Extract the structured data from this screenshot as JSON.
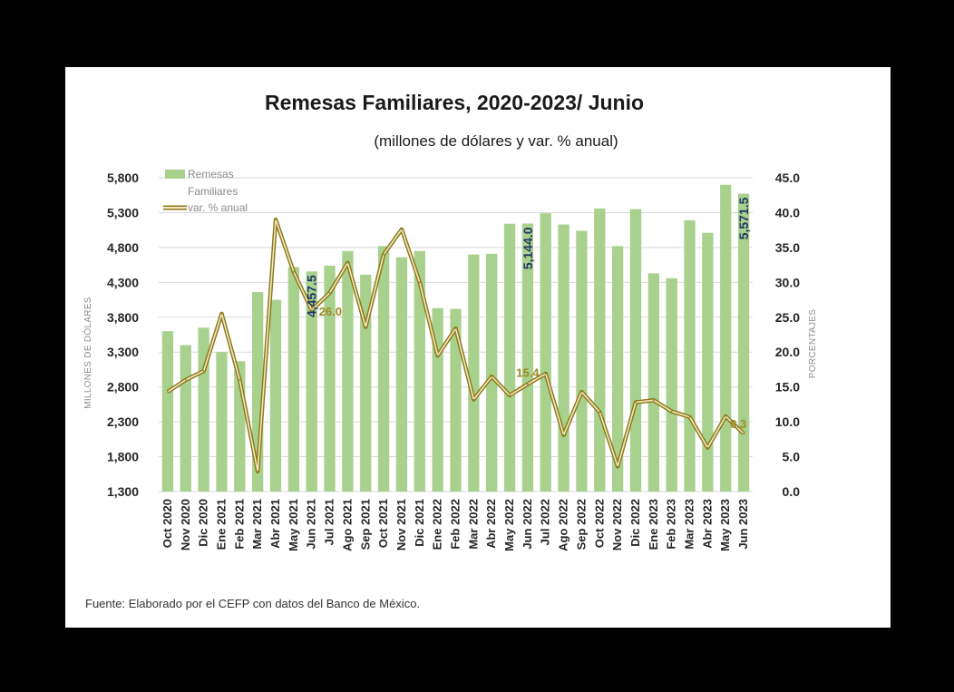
{
  "title": "Remesas Familiares, 2020-2023/ Junio",
  "subtitle": "(millones de dólares y var. % anual)",
  "footnote": "Fuente: Elaborado por el CEFP con datos del Banco de México.",
  "colors": {
    "bars": "#a9d18e",
    "line_outer": "#8c7a1a",
    "line_inner": "#f2e6c0",
    "bar_label": "#1f3864",
    "line_label": "#9c8a24"
  },
  "chart_data": {
    "type": "bar",
    "categories": [
      "Oct 2020",
      "Nov 2020",
      "Dic 2020",
      "Ene 2021",
      "Feb 2021",
      "Mar 2021",
      "Abr 2021",
      "May 2021",
      "Jun 2021",
      "Jul 2021",
      "Ago 2021",
      "Sep 2021",
      "Oct 2021",
      "Nov 2021",
      "Dic 2021",
      "Ene 2022",
      "Feb 2022",
      "Mar 2022",
      "Abr 2022",
      "May 2022",
      "Jun 2022",
      "Jul 2022",
      "Ago 2022",
      "Sep 2022",
      "Oct 2022",
      "Nov 2022",
      "Dic 2022",
      "Ene 2023",
      "Feb 2023",
      "Mar 2023",
      "Abr 2023",
      "May 2023",
      "Jun 2023"
    ],
    "series": [
      {
        "name": "Remesas Familiares",
        "type": "bar",
        "axis": "left",
        "values": [
          3600,
          3400,
          3650,
          3300,
          3170,
          4160,
          4050,
          4520,
          4457.5,
          4540,
          4750,
          4410,
          4820,
          4660,
          4750,
          3930,
          3920,
          4700,
          4710,
          5140,
          5144.0,
          5290,
          5130,
          5040,
          5360,
          4820,
          5350,
          4430,
          4360,
          5190,
          5010,
          5700,
          5571.5
        ]
      },
      {
        "name": "var. % anual",
        "type": "line",
        "axis": "right",
        "values": [
          14.3,
          16.0,
          17.3,
          25.5,
          16.0,
          2.9,
          39.0,
          31.5,
          26.0,
          28.5,
          32.8,
          23.6,
          34.0,
          37.6,
          30.0,
          19.5,
          23.4,
          13.2,
          16.5,
          13.8,
          15.4,
          16.9,
          8.1,
          14.3,
          11.4,
          3.6,
          12.8,
          13.1,
          11.5,
          10.7,
          6.3,
          10.8,
          8.3
        ]
      }
    ],
    "y_left": {
      "label": "MILLONES DE DÓLARES",
      "min": 1300,
      "max": 5800,
      "ticks": [
        "5,800",
        "5,300",
        "4,800",
        "4,300",
        "3,800",
        "3,300",
        "2,800",
        "2,300",
        "1,800",
        "1,300"
      ],
      "tick_values": [
        5800,
        5300,
        4800,
        4300,
        3800,
        3300,
        2800,
        2300,
        1800,
        1300
      ]
    },
    "y_right": {
      "label": "PORCENTAJES",
      "min": 0,
      "max": 45,
      "ticks": [
        "45.0",
        "40.0",
        "35.0",
        "30.0",
        "25.0",
        "20.0",
        "15.0",
        "10.0",
        "5.0",
        "0.0"
      ],
      "tick_values": [
        45,
        40,
        35,
        30,
        25,
        20,
        15,
        10,
        5,
        0
      ]
    },
    "bar_labels": [
      {
        "index": 8,
        "text": "4,457.5"
      },
      {
        "index": 20,
        "text": "5,144.0"
      },
      {
        "index": 32,
        "text": "5,571.5"
      }
    ],
    "line_labels": [
      {
        "index": 8,
        "text": "26.0"
      },
      {
        "index": 20,
        "text": "15.4"
      },
      {
        "index": 32,
        "text": "8.3"
      }
    ],
    "legend": {
      "position": "top-left",
      "entries": [
        "Remesas",
        "Familiares",
        "var. % anual"
      ]
    },
    "grid": true
  }
}
